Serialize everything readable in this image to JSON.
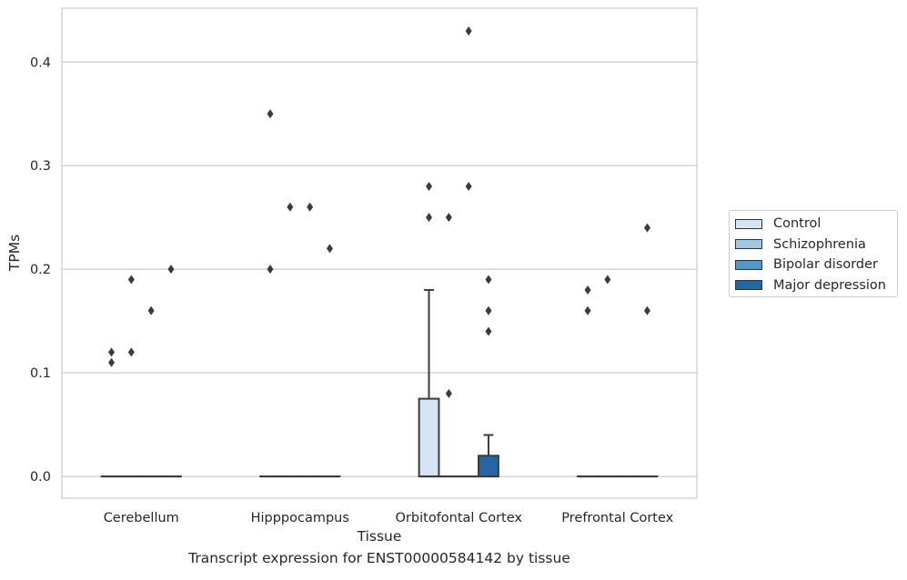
{
  "chart_data": {
    "type": "box",
    "xlabel": "Tissue",
    "ylabel": "TPMs",
    "caption": "Transcript expression for ENST00000584142 by tissue",
    "ylim": [
      -0.021,
      0.452
    ],
    "yticks": [
      "0.0",
      "0.1",
      "0.2",
      "0.3",
      "0.4"
    ],
    "categories": [
      "Cerebellum",
      "Hipppocampus",
      "Orbitofontal Cortex",
      "Prefrontal Cortex"
    ],
    "series": [
      {
        "name": "Control",
        "color": "#d6e5f3"
      },
      {
        "name": "Schizophrenia",
        "color": "#9fc8e0"
      },
      {
        "name": "Bipolar disorder",
        "color": "#5597c8"
      },
      {
        "name": "Major depression",
        "color": "#2764a4"
      }
    ],
    "boxes": [
      {
        "category": "Cerebellum",
        "series": "Control",
        "q1": 0,
        "median": 0,
        "q3": 0,
        "whisker_low": 0,
        "whisker_high": 0,
        "outliers": [
          0.12,
          0.11
        ]
      },
      {
        "category": "Cerebellum",
        "series": "Schizophrenia",
        "q1": 0,
        "median": 0,
        "q3": 0,
        "whisker_low": 0,
        "whisker_high": 0,
        "outliers": [
          0.19,
          0.12
        ]
      },
      {
        "category": "Cerebellum",
        "series": "Bipolar disorder",
        "q1": 0,
        "median": 0,
        "q3": 0,
        "whisker_low": 0,
        "whisker_high": 0,
        "outliers": [
          0.16
        ]
      },
      {
        "category": "Cerebellum",
        "series": "Major depression",
        "q1": 0,
        "median": 0,
        "q3": 0,
        "whisker_low": 0,
        "whisker_high": 0,
        "outliers": [
          0.2
        ]
      },
      {
        "category": "Hipppocampus",
        "series": "Control",
        "q1": 0,
        "median": 0,
        "q3": 0,
        "whisker_low": 0,
        "whisker_high": 0,
        "outliers": [
          0.35,
          0.2
        ]
      },
      {
        "category": "Hipppocampus",
        "series": "Schizophrenia",
        "q1": 0,
        "median": 0,
        "q3": 0,
        "whisker_low": 0,
        "whisker_high": 0,
        "outliers": [
          0.26
        ]
      },
      {
        "category": "Hipppocampus",
        "series": "Bipolar disorder",
        "q1": 0,
        "median": 0,
        "q3": 0,
        "whisker_low": 0,
        "whisker_high": 0,
        "outliers": [
          0.26
        ]
      },
      {
        "category": "Hipppocampus",
        "series": "Major depression",
        "q1": 0,
        "median": 0,
        "q3": 0,
        "whisker_low": 0,
        "whisker_high": 0,
        "outliers": [
          0.22
        ]
      },
      {
        "category": "Orbitofontal Cortex",
        "series": "Control",
        "q1": 0,
        "median": 0,
        "q3": 0.075,
        "whisker_low": 0,
        "whisker_high": 0.18,
        "outliers": [
          0.28,
          0.25
        ]
      },
      {
        "category": "Orbitofontal Cortex",
        "series": "Schizophrenia",
        "q1": 0,
        "median": 0,
        "q3": 0,
        "whisker_low": 0,
        "whisker_high": 0,
        "outliers": [
          0.25,
          0.08
        ]
      },
      {
        "category": "Orbitofontal Cortex",
        "series": "Bipolar disorder",
        "q1": 0,
        "median": 0,
        "q3": 0,
        "whisker_low": 0,
        "whisker_high": 0,
        "outliers": [
          0.43,
          0.28
        ]
      },
      {
        "category": "Orbitofontal Cortex",
        "series": "Major depression",
        "q1": 0,
        "median": 0,
        "q3": 0.02,
        "whisker_low": 0,
        "whisker_high": 0.04,
        "outliers": [
          0.19,
          0.16,
          0.14
        ]
      },
      {
        "category": "Prefrontal Cortex",
        "series": "Control",
        "q1": 0,
        "median": 0,
        "q3": 0,
        "whisker_low": 0,
        "whisker_high": 0,
        "outliers": [
          0.18,
          0.16
        ]
      },
      {
        "category": "Prefrontal Cortex",
        "series": "Schizophrenia",
        "q1": 0,
        "median": 0,
        "q3": 0,
        "whisker_low": 0,
        "whisker_high": 0,
        "outliers": [
          0.19
        ]
      },
      {
        "category": "Prefrontal Cortex",
        "series": "Bipolar disorder",
        "q1": 0,
        "median": 0,
        "q3": 0,
        "whisker_low": 0,
        "whisker_high": 0,
        "outliers": []
      },
      {
        "category": "Prefrontal Cortex",
        "series": "Major depression",
        "q1": 0,
        "median": 0,
        "q3": 0,
        "whisker_low": 0,
        "whisker_high": 0,
        "outliers": [
          0.24,
          0.16
        ]
      }
    ],
    "grid": true,
    "legend_position": "right"
  }
}
